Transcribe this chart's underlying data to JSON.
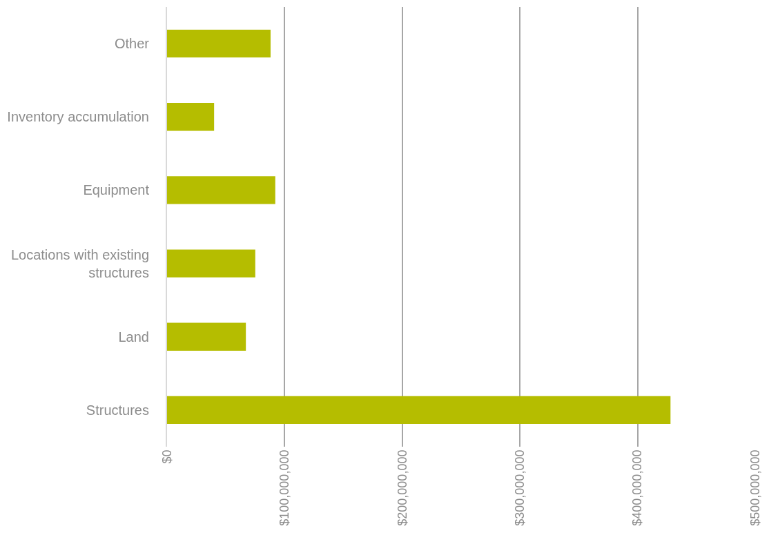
{
  "chart_data": {
    "type": "bar",
    "orientation": "horizontal",
    "categories": [
      "Other",
      "Inventory accumulation",
      "Equipment",
      "Locations with existing structures",
      "Land",
      "Structures"
    ],
    "values": [
      88000000,
      40000000,
      92000000,
      75000000,
      67000000,
      428000000
    ],
    "color": "#b5bd00",
    "xlim": [
      0,
      500000000
    ],
    "xticks": [
      {
        "value": 0,
        "label": "$0"
      },
      {
        "value": 100000000,
        "label": "$100,000,000"
      },
      {
        "value": 200000000,
        "label": "$200,000,000"
      },
      {
        "value": 300000000,
        "label": "$300,000,000"
      },
      {
        "value": 400000000,
        "label": "$400,000,000"
      },
      {
        "value": 500000000,
        "label": "$500,000,000"
      }
    ],
    "grid": "x",
    "legend": false
  }
}
